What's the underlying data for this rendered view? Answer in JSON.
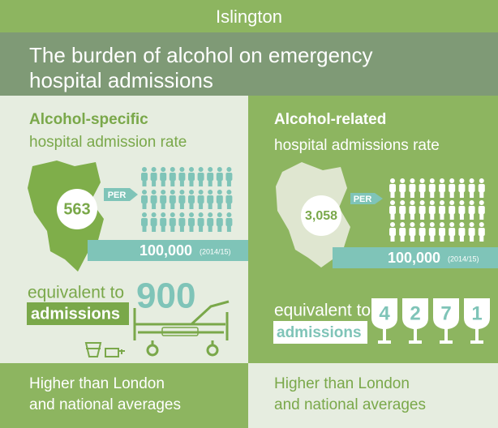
{
  "header": {
    "place": "Islington",
    "title_lines": [
      "The burden of alcohol on emergency",
      "hospital admissions"
    ]
  },
  "panels": [
    {
      "heading": "Alcohol-specific",
      "subheading": "hospital admission rate",
      "rate": "563",
      "per": "PER",
      "population": "100,000",
      "period": "(2014/15)",
      "equivalent": "equivalent to",
      "admissions_label": "admissions",
      "admissions": "900",
      "comparison_lines": [
        "Higher than London",
        "and national averages"
      ]
    },
    {
      "heading": "Alcohol-related",
      "subheading": "hospital admissions rate",
      "rate": "3,058",
      "per": "PER",
      "population": "100,000",
      "period": "(2014/15)",
      "equivalent": "equivalent to",
      "admissions_label": "admissions",
      "admission_digits": [
        "4",
        "2",
        "7",
        "1"
      ],
      "comparison_lines": [
        "Higher than London",
        "and national averages"
      ]
    }
  ]
}
